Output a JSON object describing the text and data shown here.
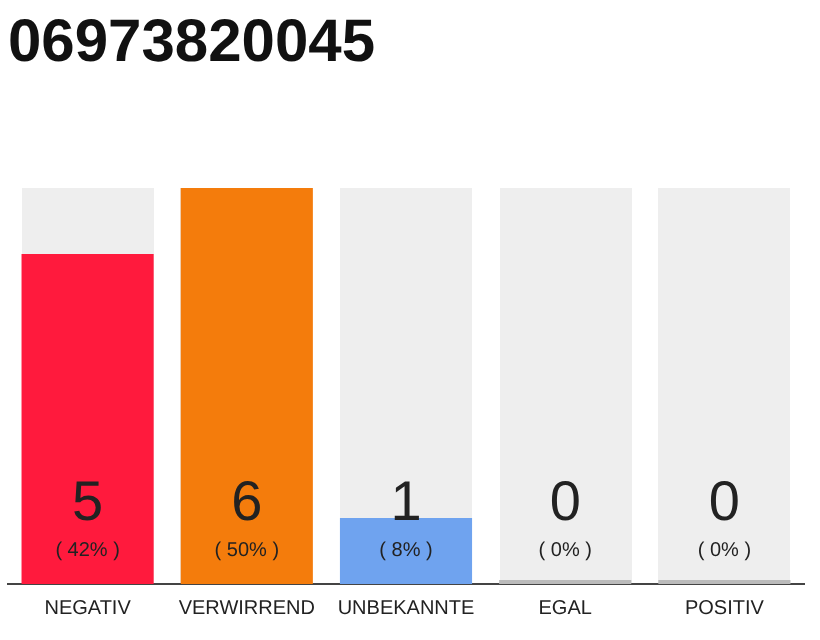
{
  "chart_data": {
    "type": "bar",
    "title": "06973820045",
    "categories": [
      "NEGATIV",
      "VERWIRREND",
      "UNBEKANNTE",
      "EGAL",
      "POSITIV"
    ],
    "values": [
      5,
      6,
      1,
      0,
      0
    ],
    "colors": [
      "#ff1a3d",
      "#f47c0c",
      "#6fa3ef",
      "#bbbbbb",
      "#bbbbbb"
    ],
    "data_labels": true,
    "grid": false,
    "legend": false,
    "annotations": [
      "( 42% )",
      "( 50% )",
      "( 8% )",
      "( 0% )",
      "( 0% )"
    ]
  }
}
